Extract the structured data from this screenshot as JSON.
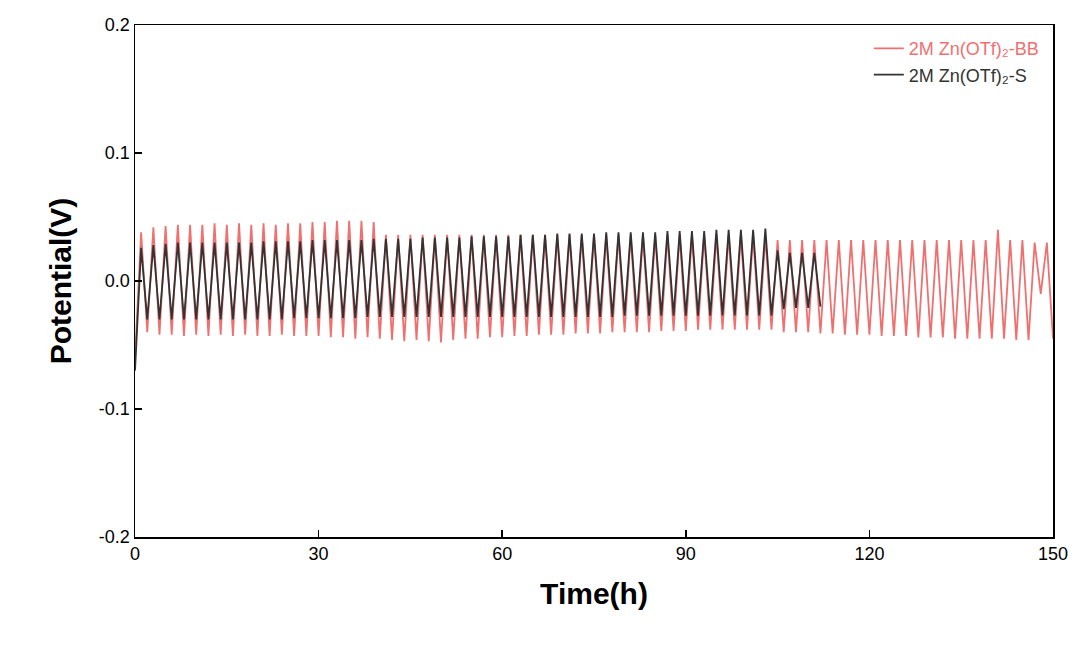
{
  "chart_data": {
    "type": "line",
    "x_label": "Time(h)",
    "y_label": "Potential(V)",
    "xlim": [
      0,
      150
    ],
    "xticks": [
      0,
      30,
      60,
      90,
      120,
      150
    ],
    "ylim": [
      -0.2,
      0.2
    ],
    "yticks": [
      -0.2,
      -0.1,
      {
        "value": 0,
        "label": "0.0"
      },
      0.1,
      0.2
    ],
    "grid": false,
    "legend": "upper right",
    "series": [
      {
        "name": "2M Zn(OTf)₂-BB",
        "color": "#f07070",
        "x": [
          0,
          1,
          2,
          3,
          4,
          5,
          6,
          7,
          8,
          9,
          10,
          11,
          12,
          13,
          14,
          15,
          16,
          17,
          18,
          19,
          20,
          21,
          22,
          23,
          24,
          25,
          26,
          27,
          28,
          29,
          30,
          31,
          32,
          33,
          34,
          35,
          36,
          37,
          38,
          39,
          40,
          41,
          42,
          43,
          44,
          45,
          46,
          47,
          48,
          49,
          50,
          51,
          52,
          53,
          54,
          55,
          56,
          57,
          58,
          59,
          60,
          61,
          62,
          63,
          64,
          65,
          66,
          67,
          68,
          69,
          70,
          71,
          72,
          73,
          74,
          75,
          76,
          77,
          78,
          79,
          80,
          81,
          82,
          83,
          84,
          85,
          86,
          87,
          88,
          89,
          90,
          91,
          92,
          93,
          94,
          95,
          96,
          97,
          98,
          99,
          100,
          101,
          102,
          103,
          104,
          105,
          106,
          107,
          108,
          109,
          110,
          111,
          112,
          113,
          114,
          115,
          116,
          117,
          118,
          119,
          120,
          121,
          122,
          123,
          124,
          125,
          126,
          127,
          128,
          129,
          130,
          131,
          132,
          133,
          134,
          135,
          136,
          137,
          138,
          139,
          140,
          141,
          142,
          143,
          144,
          145,
          146,
          147,
          148,
          149,
          150
        ],
        "values": [
          -0.06,
          0.038,
          -0.04,
          0.042,
          -0.042,
          0.043,
          -0.042,
          0.044,
          -0.043,
          0.044,
          -0.042,
          0.044,
          -0.043,
          0.045,
          -0.042,
          0.044,
          -0.043,
          0.045,
          -0.042,
          0.044,
          -0.043,
          0.045,
          -0.043,
          0.044,
          -0.042,
          0.045,
          -0.043,
          0.045,
          -0.043,
          0.046,
          -0.043,
          0.046,
          -0.044,
          0.047,
          -0.044,
          0.047,
          -0.045,
          0.047,
          -0.044,
          0.046,
          -0.045,
          0.036,
          -0.046,
          0.036,
          -0.047,
          0.036,
          -0.046,
          0.036,
          -0.047,
          0.036,
          -0.048,
          0.036,
          -0.046,
          0.036,
          -0.045,
          0.036,
          -0.045,
          0.036,
          -0.044,
          0.036,
          -0.044,
          0.036,
          -0.043,
          0.036,
          -0.043,
          0.036,
          -0.042,
          0.036,
          -0.042,
          0.036,
          -0.042,
          0.036,
          -0.041,
          0.036,
          -0.041,
          0.036,
          -0.041,
          0.036,
          -0.04,
          0.036,
          -0.04,
          0.036,
          -0.04,
          0.036,
          -0.04,
          0.036,
          -0.039,
          0.036,
          -0.039,
          0.036,
          -0.039,
          0.036,
          -0.038,
          0.036,
          -0.038,
          0.036,
          -0.038,
          0.036,
          -0.038,
          0.036,
          -0.038,
          0.036,
          -0.038,
          0.035,
          -0.038,
          0.032,
          -0.04,
          0.032,
          -0.04,
          0.032,
          -0.04,
          0.032,
          -0.041,
          0.032,
          -0.041,
          0.032,
          -0.042,
          0.032,
          -0.042,
          0.032,
          -0.042,
          0.032,
          -0.043,
          0.032,
          -0.043,
          0.032,
          -0.043,
          0.032,
          -0.044,
          0.032,
          -0.044,
          0.032,
          -0.044,
          0.032,
          -0.045,
          0.032,
          -0.045,
          0.032,
          -0.045,
          0.032,
          -0.045,
          0.04,
          -0.045,
          0.032,
          -0.046,
          0.032,
          -0.046,
          0.03,
          -0.01,
          0.03,
          -0.045
        ]
      },
      {
        "name": "2M Zn(OTf)₂-S",
        "color": "#333333",
        "x": [
          0,
          1,
          2,
          3,
          4,
          5,
          6,
          7,
          8,
          9,
          10,
          11,
          12,
          13,
          14,
          15,
          16,
          17,
          18,
          19,
          20,
          21,
          22,
          23,
          24,
          25,
          26,
          27,
          28,
          29,
          30,
          31,
          32,
          33,
          34,
          35,
          36,
          37,
          38,
          39,
          40,
          41,
          42,
          43,
          44,
          45,
          46,
          47,
          48,
          49,
          50,
          51,
          52,
          53,
          54,
          55,
          56,
          57,
          58,
          59,
          60,
          61,
          62,
          63,
          64,
          65,
          66,
          67,
          68,
          69,
          70,
          71,
          72,
          73,
          74,
          75,
          76,
          77,
          78,
          79,
          80,
          81,
          82,
          83,
          84,
          85,
          86,
          87,
          88,
          89,
          90,
          91,
          92,
          93,
          94,
          95,
          96,
          97,
          98,
          99,
          100,
          101,
          102,
          103,
          104,
          105,
          106,
          107,
          108,
          109,
          110,
          111,
          112
        ],
        "values": [
          -0.07,
          0.026,
          -0.03,
          0.028,
          -0.03,
          0.029,
          -0.03,
          0.03,
          -0.03,
          0.03,
          -0.03,
          0.03,
          -0.03,
          0.03,
          -0.03,
          0.03,
          -0.03,
          0.03,
          -0.03,
          0.03,
          -0.03,
          0.031,
          -0.03,
          0.031,
          -0.03,
          0.031,
          -0.029,
          0.031,
          -0.029,
          0.032,
          -0.029,
          0.032,
          -0.029,
          0.032,
          -0.029,
          0.032,
          -0.029,
          0.032,
          -0.028,
          0.033,
          -0.028,
          0.033,
          -0.028,
          0.033,
          -0.028,
          0.033,
          -0.028,
          0.034,
          -0.028,
          0.034,
          -0.028,
          0.034,
          -0.028,
          0.034,
          -0.028,
          0.035,
          -0.028,
          0.035,
          -0.028,
          0.035,
          -0.028,
          0.035,
          -0.028,
          0.036,
          -0.028,
          0.036,
          -0.028,
          0.036,
          -0.028,
          0.037,
          -0.028,
          0.037,
          -0.028,
          0.037,
          -0.028,
          0.037,
          -0.028,
          0.038,
          -0.028,
          0.038,
          -0.027,
          0.038,
          -0.027,
          0.038,
          -0.027,
          0.038,
          -0.027,
          0.039,
          -0.027,
          0.039,
          -0.027,
          0.039,
          -0.027,
          0.039,
          -0.027,
          0.04,
          -0.027,
          0.04,
          -0.027,
          0.04,
          -0.027,
          0.04,
          -0.027,
          0.041,
          -0.027,
          0.024,
          -0.022,
          0.022,
          -0.021,
          0.022,
          -0.021,
          0.022,
          -0.02
        ]
      }
    ]
  }
}
